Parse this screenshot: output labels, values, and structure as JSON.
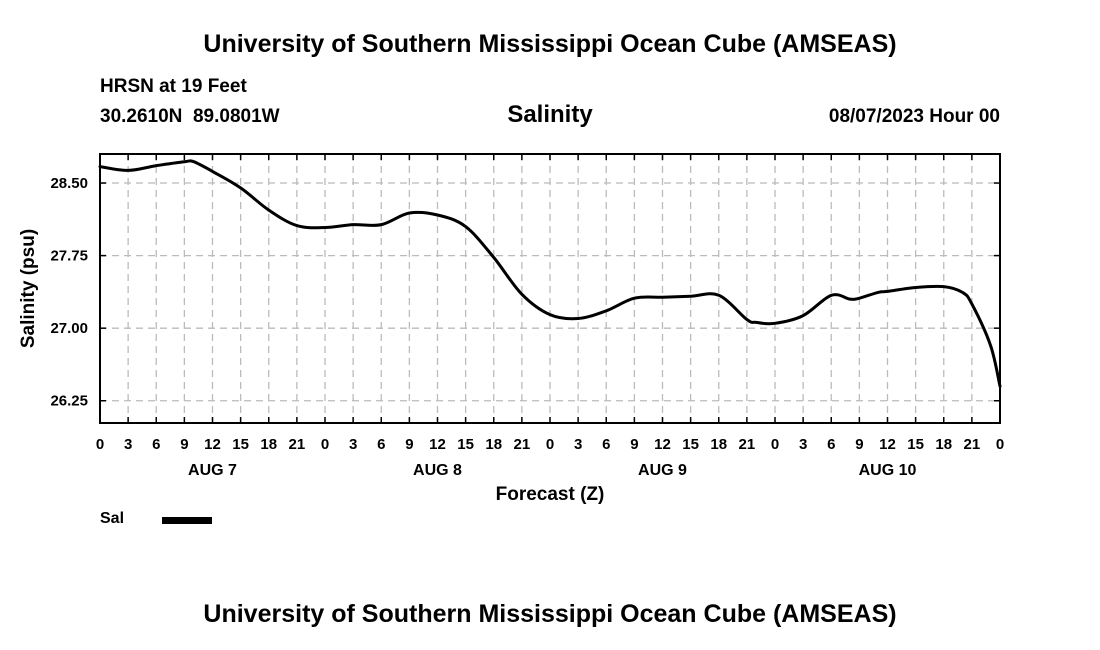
{
  "header": {
    "title": "University of Southern Mississippi Ocean Cube (AMSEAS)",
    "station": "HRSN at 19 Feet",
    "coords": "30.2610N  89.0801W",
    "variable": "Salinity",
    "datetime": "08/07/2023 Hour 00"
  },
  "footer": {
    "title": "University of Southern Mississippi Ocean Cube (AMSEAS)"
  },
  "chart_data": {
    "type": "line",
    "title": "Salinity",
    "xlabel": "Forecast (Z)",
    "ylabel": "Salinity (psu)",
    "grid": true,
    "ylim": [
      26.02,
      28.8
    ],
    "yticks": [
      26.25,
      27.0,
      27.75,
      28.5
    ],
    "ytick_labels": [
      "26.25",
      "27.00",
      "27.75",
      "28.50"
    ],
    "xlim": [
      0,
      96
    ],
    "x_tick_labels": [
      "0",
      "3",
      "6",
      "9",
      "12",
      "15",
      "18",
      "21",
      "0",
      "3",
      "6",
      "9",
      "12",
      "15",
      "18",
      "21",
      "0",
      "3",
      "6",
      "9",
      "12",
      "15",
      "18",
      "21",
      "0",
      "3",
      "6",
      "9",
      "12",
      "15",
      "18",
      "21",
      "0"
    ],
    "day_labels": [
      {
        "label": "AUG 7",
        "hour": 12
      },
      {
        "label": "AUG 8",
        "hour": 36
      },
      {
        "label": "AUG 9",
        "hour": 60
      },
      {
        "label": "AUG 10",
        "hour": 84
      }
    ],
    "legend": {
      "position": "bottom-left"
    },
    "series": [
      {
        "name": "Sal",
        "color": "#000000",
        "x": [
          0,
          3,
          6,
          9,
          10,
          12,
          15,
          18,
          21,
          24,
          27,
          30,
          33,
          36,
          39,
          42,
          45,
          48,
          51,
          54,
          57,
          60,
          63,
          66,
          69,
          70,
          72,
          75,
          78,
          80,
          81,
          83,
          84,
          87,
          90,
          92,
          93,
          95,
          96
        ],
        "values": [
          28.67,
          28.63,
          28.68,
          28.72,
          28.72,
          28.62,
          28.45,
          28.22,
          28.06,
          28.04,
          28.07,
          28.07,
          28.19,
          28.17,
          28.05,
          27.73,
          27.35,
          27.14,
          27.1,
          27.18,
          27.31,
          27.32,
          27.33,
          27.34,
          27.09,
          27.06,
          27.05,
          27.13,
          27.34,
          27.3,
          27.31,
          27.37,
          27.38,
          27.42,
          27.43,
          27.37,
          27.25,
          26.82,
          26.4
        ]
      }
    ]
  }
}
